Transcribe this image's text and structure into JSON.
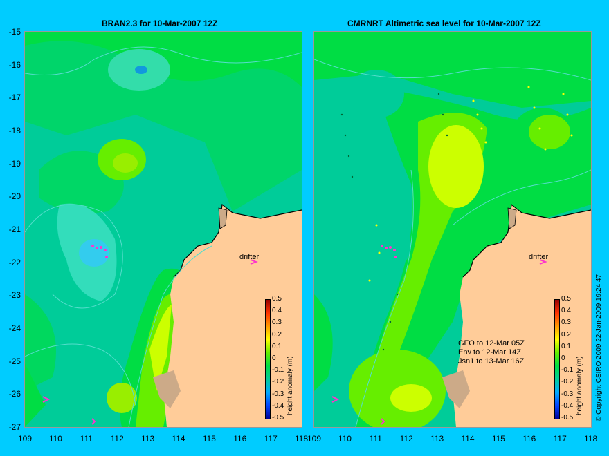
{
  "left_panel": {
    "title": "BRAN2.3 for 10-Mar-2007 12Z",
    "drifter_label": "drifter",
    "colorbar_title": "height anomaly (m)"
  },
  "right_panel": {
    "title": "CMRNRT Altimetric sea level  for 10-Mar-2007 12Z",
    "drifter_label": "drifter",
    "colorbar_title": "height anomaly (m)",
    "notes": [
      "GFO to 12-Mar 05Z",
      "Env to 12-Mar 14Z",
      "Jsn1 to 13-Mar 16Z"
    ]
  },
  "y_axis_labels": [
    "-15",
    "-16",
    "-17",
    "-18",
    "-19",
    "-20",
    "-21",
    "-22",
    "-23",
    "-24",
    "-25",
    "-26",
    "-27"
  ],
  "x_axis_labels": [
    "109",
    "110",
    "111",
    "112",
    "113",
    "114",
    "115",
    "116",
    "117",
    "118"
  ],
  "colorbar_labels": [
    "0.5",
    "0.4",
    "0.3",
    "0.2",
    "0.1",
    "0",
    "-0.1",
    "-0.2",
    "-0.3",
    "-0.4",
    "-0.5"
  ],
  "copyright": "© Copyright CSIRO 2009  22-Jan-2009 19:24:47",
  "colors": {
    "background": "#00ccff",
    "land": "#ffcc99",
    "deep_teal": "#00cc99",
    "mid_green": "#00dd44",
    "light_green": "#66ee00",
    "yellow": "#ccff00",
    "drifter": "#ff33cc"
  }
}
